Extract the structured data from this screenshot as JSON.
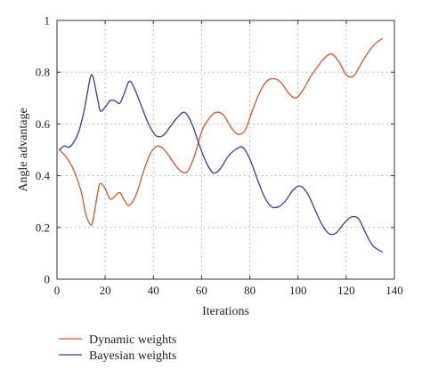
{
  "chart_data": {
    "type": "line",
    "xlabel": "Iterations",
    "ylabel": "Angle advantage",
    "xlim": [
      0,
      140
    ],
    "ylim": [
      0,
      1
    ],
    "xticks": [
      0,
      20,
      40,
      60,
      80,
      100,
      120,
      140
    ],
    "yticks": [
      0,
      0.2,
      0.4,
      0.6,
      0.8,
      1
    ],
    "xtick_labels": [
      "0",
      "20",
      "40",
      "60",
      "80",
      "100",
      "120",
      "140"
    ],
    "ytick_labels": [
      "0",
      "0.2",
      "0.4",
      "0.6",
      "0.8",
      "1"
    ],
    "grid": true,
    "legend_position": "below",
    "series": [
      {
        "name": "Dynamic weights",
        "color": "#d4572a",
        "x": [
          1,
          4,
          7,
          10,
          12,
          14,
          15,
          17,
          18,
          20,
          22,
          24,
          26,
          28,
          30,
          33,
          36,
          39,
          42,
          45,
          48,
          51,
          54,
          57,
          60,
          63,
          66,
          69,
          72,
          75,
          78,
          81,
          84,
          87,
          90,
          93,
          96,
          99,
          102,
          105,
          108,
          111,
          114,
          117,
          120,
          123,
          126,
          129,
          132,
          135
        ],
        "y": [
          0.5,
          0.47,
          0.42,
          0.34,
          0.25,
          0.21,
          0.23,
          0.34,
          0.37,
          0.35,
          0.31,
          0.32,
          0.335,
          0.305,
          0.285,
          0.33,
          0.42,
          0.49,
          0.515,
          0.495,
          0.455,
          0.42,
          0.415,
          0.475,
          0.57,
          0.62,
          0.645,
          0.635,
          0.59,
          0.56,
          0.575,
          0.65,
          0.72,
          0.765,
          0.775,
          0.76,
          0.72,
          0.7,
          0.73,
          0.78,
          0.82,
          0.855,
          0.87,
          0.84,
          0.79,
          0.785,
          0.83,
          0.875,
          0.91,
          0.93
        ]
      },
      {
        "name": "Bayesian weights",
        "color": "#3a3a9a",
        "x": [
          1,
          3,
          5,
          7,
          9,
          11,
          13,
          14,
          15,
          17,
          18,
          20,
          22,
          24,
          26,
          28,
          30,
          32,
          35,
          38,
          41,
          44,
          47,
          50,
          53,
          56,
          59,
          62,
          65,
          68,
          71,
          74,
          77,
          80,
          83,
          86,
          89,
          92,
          95,
          98,
          101,
          104,
          107,
          110,
          113,
          116,
          119,
          122,
          125,
          128,
          131,
          135
        ],
        "y": [
          0.5,
          0.515,
          0.51,
          0.53,
          0.57,
          0.64,
          0.74,
          0.785,
          0.78,
          0.69,
          0.65,
          0.665,
          0.69,
          0.69,
          0.68,
          0.72,
          0.765,
          0.74,
          0.67,
          0.6,
          0.555,
          0.555,
          0.59,
          0.625,
          0.645,
          0.6,
          0.52,
          0.45,
          0.41,
          0.43,
          0.475,
          0.5,
          0.51,
          0.465,
          0.39,
          0.32,
          0.28,
          0.28,
          0.305,
          0.345,
          0.36,
          0.33,
          0.27,
          0.21,
          0.175,
          0.18,
          0.215,
          0.24,
          0.235,
          0.18,
          0.13,
          0.105
        ]
      }
    ]
  }
}
